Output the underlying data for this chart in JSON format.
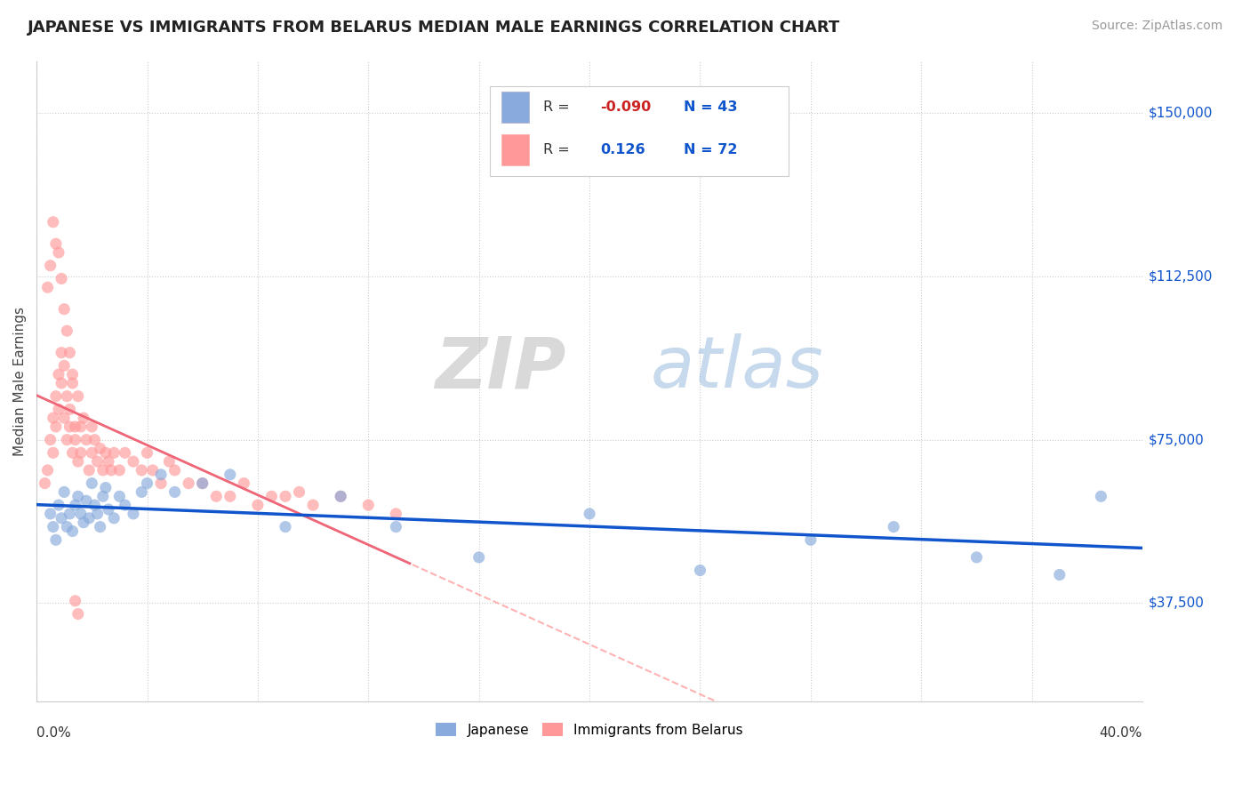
{
  "title": "JAPANESE VS IMMIGRANTS FROM BELARUS MEDIAN MALE EARNINGS CORRELATION CHART",
  "source": "Source: ZipAtlas.com",
  "ylabel": "Median Male Earnings",
  "yticks": [
    37500,
    75000,
    112500,
    150000
  ],
  "ytick_labels": [
    "$37,500",
    "$75,000",
    "$112,500",
    "$150,000"
  ],
  "xmin": 0.0,
  "xmax": 0.4,
  "ymin": 15000,
  "ymax": 162000,
  "blue_color": "#88AADD",
  "pink_color": "#FF9999",
  "line_blue": "#1155CC",
  "line_pink": "#EE6677",
  "line_pink_dash": "#FFAAAA",
  "watermark_zip": "#BBBBBB",
  "watermark_atlas": "#99BBDD",
  "japanese_x": [
    0.005,
    0.006,
    0.007,
    0.008,
    0.009,
    0.01,
    0.011,
    0.012,
    0.013,
    0.014,
    0.015,
    0.016,
    0.017,
    0.018,
    0.019,
    0.02,
    0.021,
    0.022,
    0.023,
    0.024,
    0.025,
    0.026,
    0.028,
    0.03,
    0.032,
    0.035,
    0.038,
    0.04,
    0.045,
    0.05,
    0.06,
    0.07,
    0.09,
    0.11,
    0.13,
    0.16,
    0.2,
    0.24,
    0.28,
    0.31,
    0.34,
    0.37,
    0.385
  ],
  "japanese_y": [
    58000,
    55000,
    52000,
    60000,
    57000,
    63000,
    55000,
    58000,
    54000,
    60000,
    62000,
    58000,
    56000,
    61000,
    57000,
    65000,
    60000,
    58000,
    55000,
    62000,
    64000,
    59000,
    57000,
    62000,
    60000,
    58000,
    63000,
    65000,
    67000,
    63000,
    65000,
    67000,
    55000,
    62000,
    55000,
    48000,
    58000,
    45000,
    52000,
    55000,
    48000,
    44000,
    62000
  ],
  "belarus_x": [
    0.003,
    0.004,
    0.005,
    0.006,
    0.006,
    0.007,
    0.007,
    0.008,
    0.008,
    0.009,
    0.009,
    0.01,
    0.01,
    0.011,
    0.011,
    0.012,
    0.012,
    0.013,
    0.013,
    0.014,
    0.014,
    0.015,
    0.015,
    0.016,
    0.016,
    0.017,
    0.018,
    0.019,
    0.02,
    0.02,
    0.021,
    0.022,
    0.023,
    0.024,
    0.025,
    0.026,
    0.027,
    0.028,
    0.03,
    0.032,
    0.035,
    0.038,
    0.04,
    0.042,
    0.045,
    0.048,
    0.05,
    0.055,
    0.06,
    0.065,
    0.07,
    0.075,
    0.08,
    0.085,
    0.09,
    0.095,
    0.1,
    0.11,
    0.12,
    0.13,
    0.004,
    0.005,
    0.006,
    0.007,
    0.008,
    0.009,
    0.01,
    0.011,
    0.012,
    0.013,
    0.014,
    0.015
  ],
  "belarus_y": [
    65000,
    68000,
    75000,
    72000,
    80000,
    78000,
    85000,
    82000,
    90000,
    88000,
    95000,
    92000,
    80000,
    85000,
    75000,
    82000,
    78000,
    88000,
    72000,
    78000,
    75000,
    85000,
    70000,
    78000,
    72000,
    80000,
    75000,
    68000,
    78000,
    72000,
    75000,
    70000,
    73000,
    68000,
    72000,
    70000,
    68000,
    72000,
    68000,
    72000,
    70000,
    68000,
    72000,
    68000,
    65000,
    70000,
    68000,
    65000,
    65000,
    62000,
    62000,
    65000,
    60000,
    62000,
    62000,
    63000,
    60000,
    62000,
    60000,
    58000,
    110000,
    115000,
    125000,
    120000,
    118000,
    112000,
    105000,
    100000,
    95000,
    90000,
    38000,
    35000
  ]
}
